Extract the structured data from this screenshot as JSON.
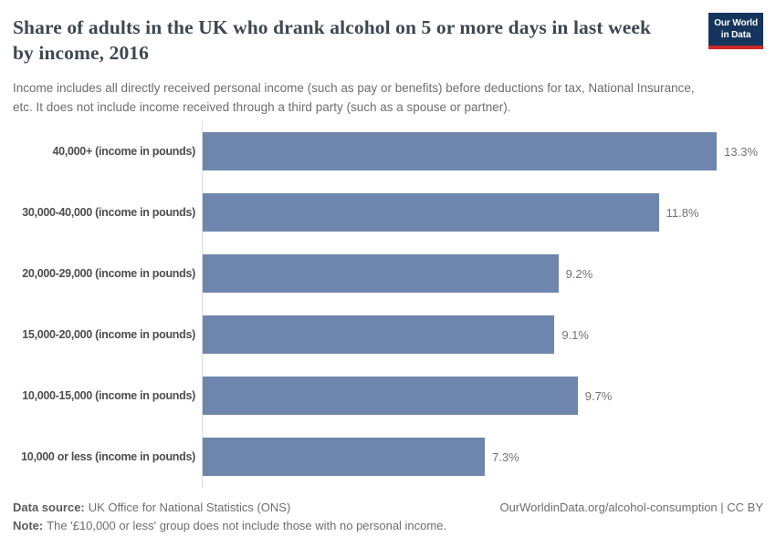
{
  "header": {
    "logo": {
      "line1": "Our World",
      "line2": "in Data"
    }
  },
  "chart_data": {
    "type": "bar",
    "orientation": "horizontal",
    "title": "Share of adults in the UK who drank alcohol on 5 or more days in last week by income, 2016",
    "subtitle": "Income includes all directly received personal income (such as pay or benefits) before deductions for tax, National Insurance, etc. It does not include income received through a third party (such as a spouse or partner).",
    "categories": [
      "40,000+ (income in pounds)",
      "30,000-40,000 (income in pounds)",
      "20,000-29,000 (income in pounds)",
      "15,000-20,000 (income in pounds)",
      "10,000-15,000 (income in pounds)",
      "10,000 or less (income in pounds)"
    ],
    "values": [
      13.3,
      11.8,
      9.2,
      9.1,
      9.7,
      7.3
    ],
    "value_labels": [
      "13.3%",
      "11.8%",
      "9.2%",
      "9.1%",
      "9.7%",
      "7.3%"
    ],
    "unit": "%",
    "xlim": [
      0,
      14.5
    ],
    "grid": false,
    "legend": false,
    "bar_color": "#6e86ae",
    "axis_color": "#dcdcdc"
  },
  "footer": {
    "datasource_label": "Data source:",
    "datasource": "UK Office for National Statistics (ONS)",
    "note_label": "Note:",
    "note": "The '£10,000 or less' group does not include those with no personal income.",
    "credit": "OurWorldinData.org/alcohol-consumption | CC BY"
  },
  "colors": {
    "logo_navy": "#15355c",
    "logo_red": "#cf2722",
    "bar_blue": "#6e86ae",
    "title_text": "#3e4752",
    "muted_text": "#6e6e6e"
  }
}
